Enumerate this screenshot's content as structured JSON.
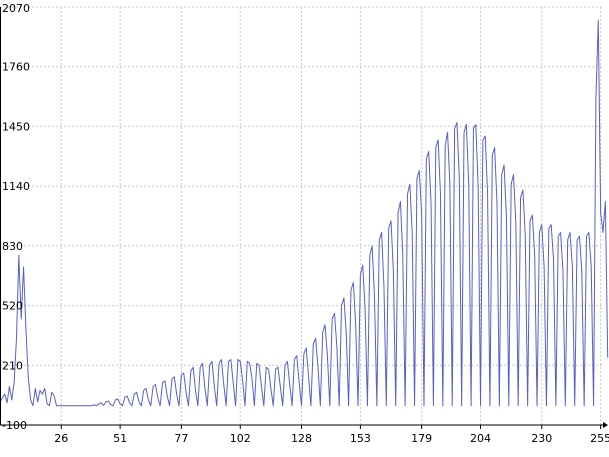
{
  "chart_data": {
    "type": "line",
    "title": "",
    "xlabel": "",
    "ylabel": "",
    "xlim": [
      0,
      256
    ],
    "ylim": [
      -100,
      2070
    ],
    "x_ticks": [
      26,
      51,
      77,
      102,
      128,
      153,
      179,
      204,
      230,
      255
    ],
    "x_tick_labels": [
      "26",
      "51",
      "77",
      "102",
      "128",
      "153",
      "179",
      "204",
      "230",
      "255"
    ],
    "y_ticks": [
      -100,
      210,
      520,
      830,
      1140,
      1450,
      1760,
      2070
    ],
    "y_tick_labels": [
      "-100",
      "210",
      "520",
      "830",
      "1140",
      "1450",
      "1760",
      "2070"
    ],
    "grid": true,
    "line_color": "#5a5fc8",
    "series": [
      {
        "name": "",
        "values": [
          20,
          40,
          60,
          15,
          100,
          30,
          120,
          350,
          780,
          450,
          720,
          400,
          150,
          30,
          0,
          90,
          20,
          80,
          60,
          90,
          10,
          0,
          70,
          50,
          0,
          0,
          0,
          0,
          0,
          0,
          0,
          0,
          0,
          0,
          0,
          0,
          0,
          0,
          0,
          0,
          5,
          0,
          10,
          15,
          2,
          20,
          25,
          5,
          0,
          30,
          35,
          10,
          0,
          45,
          50,
          15,
          0,
          60,
          70,
          20,
          0,
          80,
          90,
          30,
          0,
          100,
          110,
          40,
          0,
          120,
          130,
          50,
          0,
          140,
          150,
          60,
          0,
          160,
          170,
          70,
          0,
          180,
          200,
          80,
          0,
          200,
          220,
          90,
          0,
          210,
          230,
          100,
          0,
          220,
          240,
          110,
          0,
          230,
          240,
          120,
          0,
          240,
          230,
          130,
          0,
          230,
          220,
          140,
          0,
          220,
          210,
          100,
          0,
          200,
          190,
          90,
          0,
          190,
          200,
          100,
          0,
          210,
          230,
          110,
          0,
          240,
          260,
          120,
          0,
          270,
          300,
          150,
          0,
          320,
          350,
          200,
          0,
          380,
          420,
          260,
          0,
          450,
          480,
          310,
          0,
          520,
          560,
          380,
          0,
          600,
          640,
          420,
          0,
          680,
          730,
          500,
          0,
          780,
          830,
          560,
          0,
          860,
          900,
          620,
          0,
          920,
          960,
          700,
          0,
          1000,
          1060,
          780,
          0,
          1100,
          1150,
          900,
          0,
          1180,
          1220,
          1000,
          0,
          1280,
          1320,
          1050,
          0,
          1340,
          1380,
          1100,
          0,
          1350,
          1420,
          1150,
          0,
          1440,
          1470,
          1180,
          0,
          1420,
          1460,
          1150,
          0,
          1440,
          1460,
          1140,
          0,
          1380,
          1400,
          1100,
          0,
          1300,
          1340,
          1050,
          0,
          1200,
          1250,
          980,
          0,
          1150,
          1200,
          950,
          0,
          1080,
          1120,
          880,
          0,
          960,
          990,
          780,
          0,
          900,
          940,
          720,
          0,
          920,
          940,
          760,
          0,
          880,
          900,
          700,
          0,
          860,
          900,
          720,
          0,
          860,
          880,
          700,
          0,
          880,
          900,
          720,
          0,
          1600,
          2000,
          1000,
          900,
          1060,
          250
        ]
      }
    ]
  }
}
